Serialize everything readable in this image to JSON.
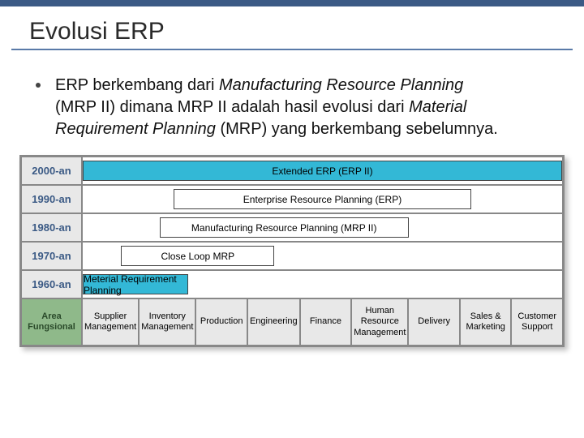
{
  "colors": {
    "topbar": "#3b5a85",
    "underline": "#5a7aa8",
    "decade_bg": "#e8e8e8",
    "decade_text": "#3b5a85",
    "bar_blue": "#33b8d6",
    "bar_white": "#ffffff",
    "area_bg": "#e8e8e8",
    "area_label_bg": "#8fb98a",
    "area_label_text": "#2a4a2a",
    "border": "#888888"
  },
  "title": "Evolusi ERP",
  "bullet": {
    "p1a": "ERP berkembang dari ",
    "p1b": "Manufacturing Resource Planning",
    "p2a": "(MRP II) dimana MRP II adalah hasil evolusi dari ",
    "p2b": "Material",
    "p3a": "Requirement Planning",
    "p3b": " (MRP) yang berkembang sebelumnya."
  },
  "timeline": {
    "rows": [
      {
        "decade": "2000-an",
        "label": "Extended ERP (ERP II)",
        "left_pct": 0,
        "width_pct": 100,
        "blue": true
      },
      {
        "decade": "1990-an",
        "label": "Enterprise Resource Planning (ERP)",
        "left_pct": 19,
        "width_pct": 62,
        "blue": false
      },
      {
        "decade": "1980-an",
        "label": "Manufacturing Resource Planning (MRP II)",
        "left_pct": 16,
        "width_pct": 52,
        "blue": false
      },
      {
        "decade": "1970-an",
        "label": "Close Loop MRP",
        "left_pct": 8,
        "width_pct": 32,
        "blue": false
      },
      {
        "decade": "1960-an",
        "label": "Meterial Requirement Planning",
        "left_pct": 0,
        "width_pct": 22,
        "blue": true
      }
    ]
  },
  "areas": {
    "label": "Area Fungsional",
    "cols": [
      "Supplier Management",
      "Inventory Management",
      "Production",
      "Engineering",
      "Finance",
      "Human Resource Management",
      "Delivery",
      "Sales & Marketing",
      "Customer Support"
    ]
  }
}
